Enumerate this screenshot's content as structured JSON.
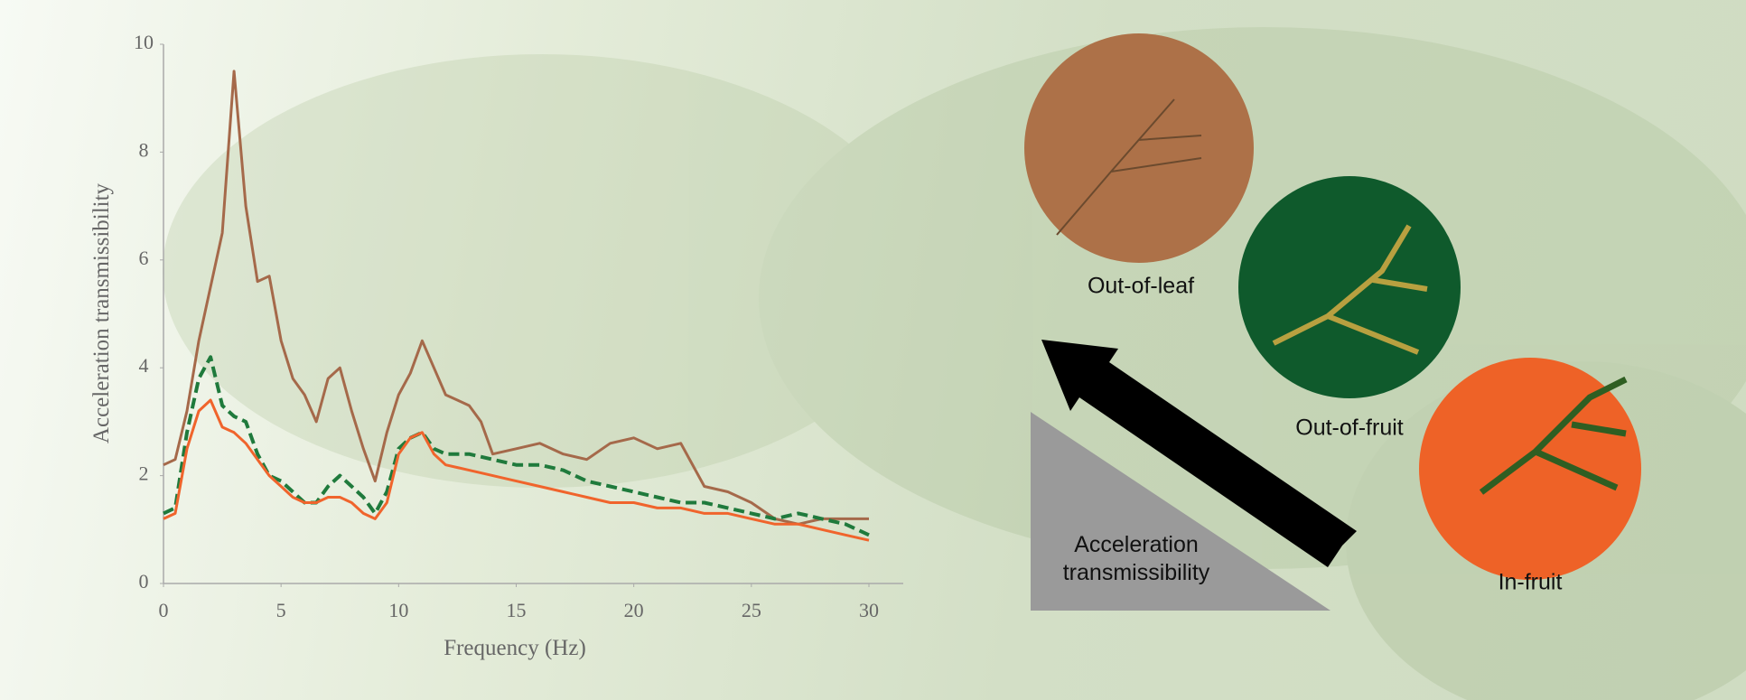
{
  "chart_data": {
    "type": "line",
    "xlabel": "Frequency (Hz)",
    "ylabel": "Acceleration transmissibility",
    "x": [
      0,
      0.5,
      1,
      1.5,
      2,
      2.5,
      3,
      3.5,
      4,
      4.5,
      5,
      5.5,
      6,
      6.5,
      7,
      7.5,
      8,
      8.5,
      9,
      9.5,
      10,
      10.5,
      11,
      11.5,
      12,
      12.5,
      13,
      13.5,
      14,
      15,
      16,
      17,
      18,
      19,
      20,
      21,
      22,
      23,
      24,
      25,
      26,
      27,
      28,
      29,
      30
    ],
    "series": [
      {
        "name": "Out-of-leaf",
        "color": "#a5694a",
        "dash": false,
        "values": [
          2.2,
          2.3,
          3.2,
          4.5,
          5.5,
          6.5,
          9.5,
          7,
          5.6,
          5.7,
          4.5,
          3.8,
          3.5,
          3.0,
          3.8,
          4.0,
          3.2,
          2.5,
          1.9,
          2.8,
          3.5,
          3.9,
          4.5,
          4.0,
          3.5,
          3.4,
          3.3,
          3.0,
          2.4,
          2.5,
          2.6,
          2.4,
          2.3,
          2.6,
          2.7,
          2.5,
          2.6,
          1.8,
          1.7,
          1.5,
          1.2,
          1.1,
          1.2,
          1.2,
          1.2
        ]
      },
      {
        "name": "Out-of-fruit",
        "color": "#1f7a3c",
        "dash": true,
        "values": [
          1.3,
          1.4,
          2.8,
          3.8,
          4.2,
          3.3,
          3.1,
          3.0,
          2.4,
          2.0,
          1.9,
          1.7,
          1.5,
          1.5,
          1.8,
          2.0,
          1.8,
          1.6,
          1.3,
          1.7,
          2.5,
          2.7,
          2.8,
          2.5,
          2.4,
          2.4,
          2.4,
          2.35,
          2.3,
          2.2,
          2.2,
          2.1,
          1.9,
          1.8,
          1.7,
          1.6,
          1.5,
          1.5,
          1.4,
          1.3,
          1.2,
          1.3,
          1.2,
          1.1,
          0.9
        ]
      },
      {
        "name": "In-fruit",
        "color": "#f0642c",
        "dash": false,
        "values": [
          1.2,
          1.3,
          2.5,
          3.2,
          3.4,
          2.9,
          2.8,
          2.6,
          2.3,
          2.0,
          1.8,
          1.6,
          1.5,
          1.5,
          1.6,
          1.6,
          1.5,
          1.3,
          1.2,
          1.5,
          2.4,
          2.7,
          2.8,
          2.4,
          2.2,
          2.15,
          2.1,
          2.05,
          2.0,
          1.9,
          1.8,
          1.7,
          1.6,
          1.5,
          1.5,
          1.4,
          1.4,
          1.3,
          1.3,
          1.2,
          1.1,
          1.1,
          1.0,
          0.9,
          0.8
        ]
      }
    ],
    "xlim": [
      0,
      30
    ],
    "xticks": [
      0,
      5,
      10,
      15,
      20,
      25,
      30
    ],
    "ylim": [
      0,
      10
    ],
    "yticks": [
      0,
      2,
      4,
      6,
      8,
      10
    ]
  }
}
